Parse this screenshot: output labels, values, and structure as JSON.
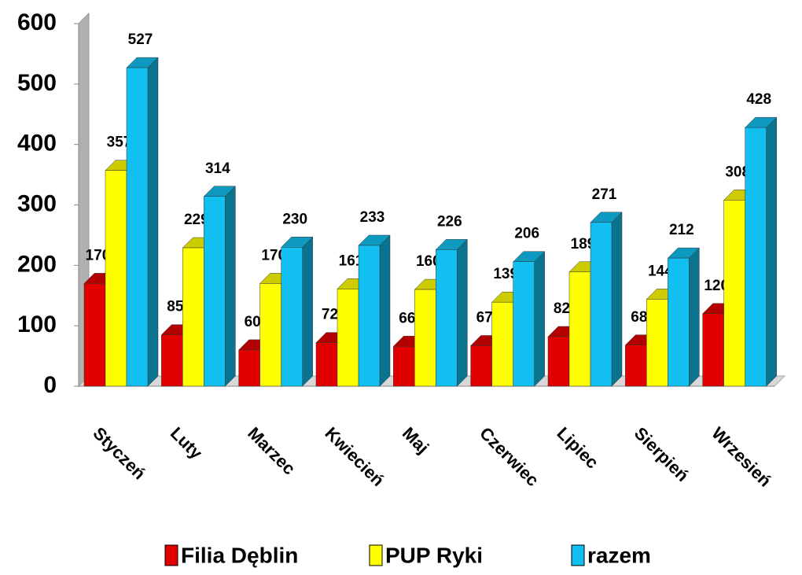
{
  "chart_data": {
    "type": "bar",
    "categories": [
      "Styczeń",
      "Luty",
      "Marzec",
      "Kwiecień",
      "Maj",
      "Czerwiec",
      "Lipiec",
      "Sierpień",
      "Wrzesień"
    ],
    "series": [
      {
        "name": "Filia Dęblin",
        "color": "#e00000",
        "values": [
          170,
          85,
          60,
          72,
          66,
          67,
          82,
          68,
          120
        ]
      },
      {
        "name": "PUP Ryki",
        "color": "#ffff00",
        "values": [
          357,
          229,
          170,
          161,
          160,
          139,
          189,
          144,
          308
        ]
      },
      {
        "name": "razem",
        "color": "#11c0f0",
        "values": [
          527,
          314,
          230,
          233,
          226,
          206,
          271,
          212,
          428
        ]
      }
    ],
    "ylim": [
      0,
      600
    ],
    "yticks": [
      0,
      100,
      200,
      300,
      400,
      500,
      600
    ],
    "legend": "bottom"
  }
}
